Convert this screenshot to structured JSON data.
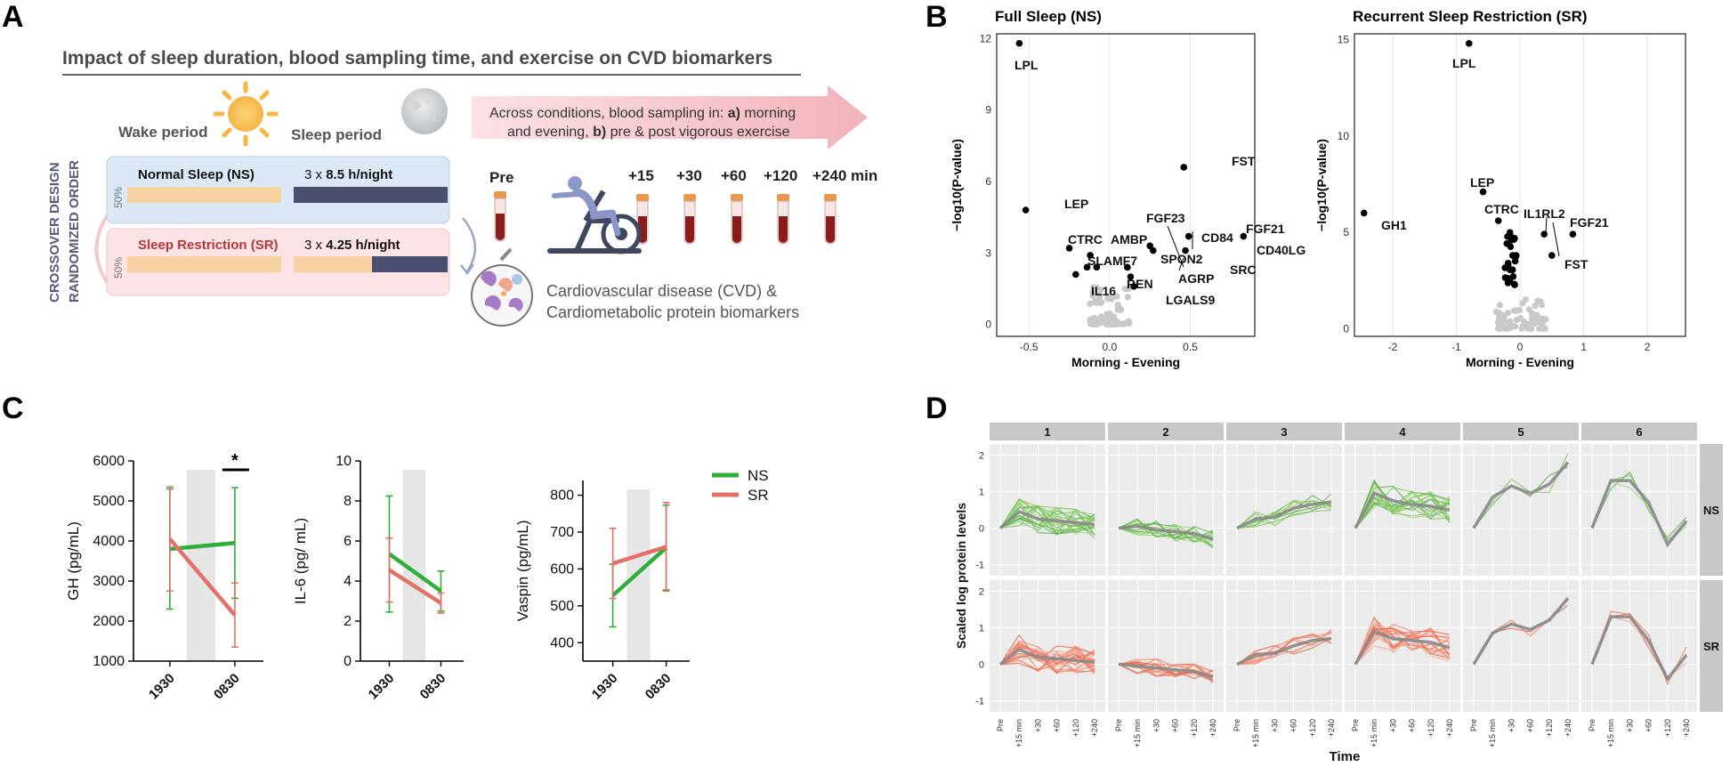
{
  "panels": {
    "A": "A",
    "B": "B",
    "C": "C",
    "D": "D"
  },
  "panelA": {
    "title": "Impact of sleep duration, blood sampling time, and exercise on CVD biomarkers",
    "wake": "Wake period",
    "sleep": "Sleep period",
    "crossover1": "CROSSOVER DESIGN",
    "crossover2": "RANDOMIZED ORDER",
    "ns_label": "Normal Sleep (NS)",
    "ns_hours_pre": "3 x ",
    "ns_hours": "8.5 h/night",
    "sr_label": "Sleep Restriction (SR)",
    "sr_hours_pre": "3 x ",
    "sr_hours": "4.25 h/night",
    "pct_ns": "50%",
    "pct_sr": "50%",
    "arrow_line1_pre": "Across conditions, blood sampling in: ",
    "arrow_line1_a": "a)",
    "arrow_line1_post": " morning",
    "arrow_line2_pre": "and evening, ",
    "arrow_line2_b": "b)",
    "arrow_line2_post": " pre & post vigorous exercise",
    "pre": "Pre",
    "timepoints": [
      "+15",
      "+30",
      "+60",
      "+120",
      "+240 min"
    ],
    "cvd1": "Cardiovascular disease (CVD) &",
    "cvd2": "Cardiometabolic protein biomarkers",
    "colors": {
      "ns_bg": "#dbe9f7",
      "sr_bg": "#fbe3e6",
      "wake_bar": "#f6d2a2",
      "sleep_bar": "#4a4f70",
      "arrow": "#f4c6cb",
      "sr_text": "#b03a3a"
    }
  },
  "chart_data": [
    {
      "type": "scatter",
      "title": "Full Sleep (NS)",
      "xlabel": "Morning - Evening",
      "ylabel": "−log10(P-value)",
      "xlim": [
        -0.7,
        0.9
      ],
      "ylim": [
        -0.5,
        12.2
      ],
      "xticks": [
        -0.5,
        0.0,
        0.5
      ],
      "yticks": [
        0,
        3,
        6,
        9,
        12
      ],
      "labeled_points": [
        {
          "name": "LPL",
          "x": -0.56,
          "y": 11.8
        },
        {
          "name": "LEP",
          "x": -0.52,
          "y": 4.8
        },
        {
          "name": "CTRC",
          "x": -0.25,
          "y": 3.2
        },
        {
          "name": "AMBP",
          "x": -0.12,
          "y": 2.9
        },
        {
          "name": "SLAMF7",
          "x": -0.14,
          "y": 2.4
        },
        {
          "name": "REN",
          "x": -0.08,
          "y": 2.4
        },
        {
          "name": "IL16",
          "x": -0.21,
          "y": 2.1
        },
        {
          "name": "FGF23",
          "x": 0.25,
          "y": 3.3
        },
        {
          "name": "CD84",
          "x": 0.27,
          "y": 3.1
        },
        {
          "name": "SPON2",
          "x": 0.11,
          "y": 2.4
        },
        {
          "name": "AGRP",
          "x": 0.13,
          "y": 2.0
        },
        {
          "name": "LGALS9",
          "x": 0.15,
          "y": 1.6
        },
        {
          "name": "FST",
          "x": 0.46,
          "y": 6.6
        },
        {
          "name": "FGF21",
          "x": 0.49,
          "y": 3.7
        },
        {
          "name": "SRC",
          "x": 0.47,
          "y": 3.1
        },
        {
          "name": "CD40LG",
          "x": 0.83,
          "y": 3.7
        }
      ]
    },
    {
      "type": "scatter",
      "title": "Recurrent Sleep Restriction (SR)",
      "xlabel": "Morning - Evening",
      "ylabel": "−log10(P-value)",
      "xlim": [
        -2.6,
        2.6
      ],
      "ylim": [
        -0.4,
        15.3
      ],
      "xticks": [
        -2,
        -1,
        0,
        1,
        2
      ],
      "yticks": [
        0,
        5,
        10,
        15
      ],
      "labeled_points": [
        {
          "name": "LPL",
          "x": -0.8,
          "y": 14.8
        },
        {
          "name": "LEP",
          "x": -0.58,
          "y": 7.1
        },
        {
          "name": "CTRC",
          "x": -0.34,
          "y": 5.6
        },
        {
          "name": "GH1",
          "x": -2.45,
          "y": 6.0
        },
        {
          "name": "FGF21",
          "x": 0.83,
          "y": 4.9
        },
        {
          "name": "IL1RL2",
          "x": 0.38,
          "y": 4.9
        },
        {
          "name": "FST",
          "x": 0.5,
          "y": 3.8
        }
      ]
    },
    {
      "type": "line",
      "ylabel": "GH  (pg/mL)",
      "categories": [
        "1930",
        "0830"
      ],
      "ylim": [
        1000,
        6000
      ],
      "yticks": [
        1000,
        2000,
        3000,
        4000,
        5000,
        6000
      ],
      "significance": "*",
      "series": [
        {
          "name": "NS",
          "values": [
            3800,
            3950
          ],
          "err": [
            1500,
            1380
          ]
        },
        {
          "name": "SR",
          "values": [
            4050,
            2150
          ],
          "err": [
            1300,
            800
          ]
        }
      ]
    },
    {
      "type": "line",
      "ylabel": "IL-6  (pg/ mL)",
      "categories": [
        "1930",
        "0830"
      ],
      "ylim": [
        0,
        10
      ],
      "yticks": [
        0,
        2,
        4,
        6,
        8,
        10
      ],
      "series": [
        {
          "name": "NS",
          "values": [
            5.35,
            3.5
          ],
          "err": [
            2.9,
            1.0
          ]
        },
        {
          "name": "SR",
          "values": [
            4.55,
            2.9
          ],
          "err": [
            1.6,
            0.5
          ]
        }
      ]
    },
    {
      "type": "line",
      "ylabel": "Vaspin  (pg/mL)",
      "categories": [
        "1930",
        "0830"
      ],
      "ylim": [
        350,
        840
      ],
      "yticks": [
        400,
        500,
        600,
        700,
        800
      ],
      "legend": [
        "NS",
        "SR"
      ],
      "series": [
        {
          "name": "NS",
          "values": [
            528,
            658
          ],
          "err": [
            85,
            115
          ]
        },
        {
          "name": "SR",
          "values": [
            615,
            660
          ],
          "err": [
            95,
            120
          ]
        }
      ]
    },
    {
      "type": "line",
      "ylabel": "Scaled log protein levels",
      "xlabel": "Time",
      "categories": [
        "Pre",
        "+15 min",
        "+30",
        "+60",
        "+120",
        "+240"
      ],
      "clusters": [
        "1",
        "2",
        "3",
        "4",
        "5",
        "6"
      ],
      "rows": [
        "NS",
        "SR"
      ],
      "yticks": [
        -1,
        0,
        1,
        2
      ],
      "ylim": [
        -1.3,
        2.3
      ],
      "series_mean": [
        [
          0,
          0.45,
          0.25,
          0.2,
          0.15,
          0.1
        ],
        [
          0,
          0.05,
          -0.05,
          -0.1,
          -0.15,
          -0.3
        ],
        [
          0,
          0.25,
          0.3,
          0.55,
          0.65,
          0.72
        ],
        [
          0,
          0.95,
          0.75,
          0.65,
          0.6,
          0.5
        ],
        [
          0,
          0.85,
          1.15,
          0.95,
          1.2,
          1.8
        ],
        [
          0,
          1.3,
          1.3,
          0.7,
          -0.45,
          0.2
        ]
      ],
      "series_mean_sr": [
        [
          0,
          0.4,
          0.2,
          0.15,
          0.1,
          0.05
        ],
        [
          0,
          -0.05,
          -0.1,
          -0.15,
          -0.2,
          -0.35
        ],
        [
          0,
          0.25,
          0.3,
          0.5,
          0.65,
          0.7
        ],
        [
          0,
          0.9,
          0.7,
          0.65,
          0.6,
          0.45
        ],
        [
          0,
          0.85,
          1.1,
          0.95,
          1.2,
          1.8
        ],
        [
          0,
          1.3,
          1.3,
          0.65,
          -0.4,
          0.25
        ]
      ]
    }
  ]
}
